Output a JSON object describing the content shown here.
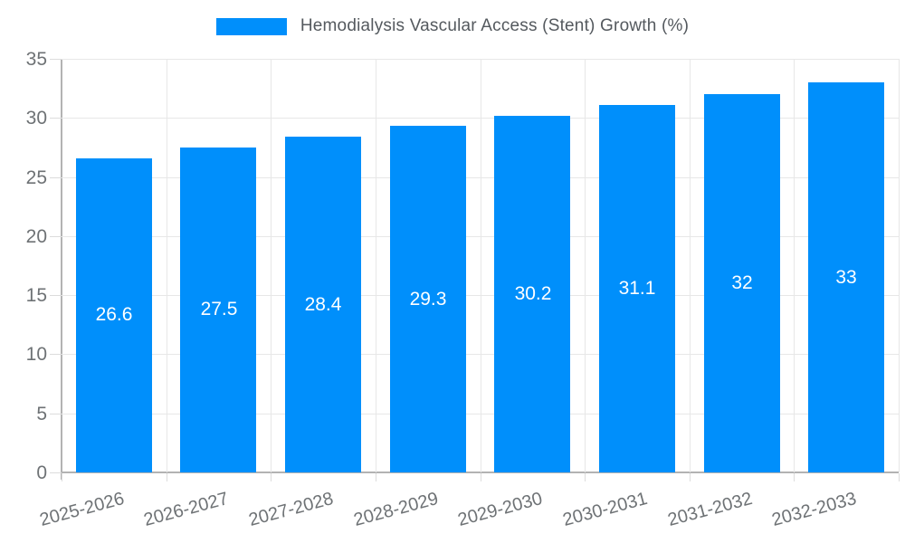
{
  "legend": {
    "label": "Hemodialysis Vascular Access (Stent) Growth (%)",
    "swatch_color": "#008FFB"
  },
  "chart_data": {
    "type": "bar",
    "title": "Hemodialysis Vascular Access (Stent) Growth (%)",
    "categories": [
      "2025-2026",
      "2026-2027",
      "2027-2028",
      "2028-2029",
      "2029-2030",
      "2030-2031",
      "2031-2032",
      "2032-2033"
    ],
    "series": [
      {
        "name": "Hemodialysis Vascular Access (Stent) Growth (%)",
        "values": [
          26.6,
          27.5,
          28.4,
          29.3,
          30.2,
          31.1,
          32,
          33
        ]
      }
    ],
    "value_labels": [
      "26.6",
      "27.5",
      "28.4",
      "29.3",
      "30.2",
      "31.1",
      "32",
      "33"
    ],
    "xlabel": "",
    "ylabel": "",
    "ylim": [
      0,
      35
    ],
    "y_ticks": [
      0,
      5,
      10,
      15,
      20,
      25,
      30,
      35
    ],
    "grid": "horizontal and vertical light gray",
    "legend_position": "top",
    "bar_color": "#008FFB",
    "value_label_color": "#ffffff",
    "axis_label_color": "#6e7275",
    "gridline_color": "#e7e7e7",
    "axis_line_color": "#b3b3b3"
  }
}
